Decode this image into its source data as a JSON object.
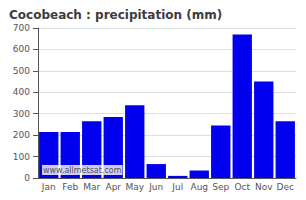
{
  "chart_data": {
    "type": "bar",
    "title": "Cocobeach : precipitation (mm)",
    "categories": [
      "Jan",
      "Feb",
      "Mar",
      "Apr",
      "May",
      "Jun",
      "Jul",
      "Aug",
      "Sep",
      "Oct",
      "Nov",
      "Dec"
    ],
    "values": [
      215,
      215,
      265,
      285,
      340,
      65,
      10,
      35,
      245,
      670,
      450,
      265
    ],
    "color": "#0000ee",
    "ylim": [
      0,
      700
    ],
    "yticks": [
      0,
      100,
      200,
      300,
      400,
      500,
      600,
      700
    ],
    "grid": true,
    "annotation": "www.allmetsat.com"
  }
}
